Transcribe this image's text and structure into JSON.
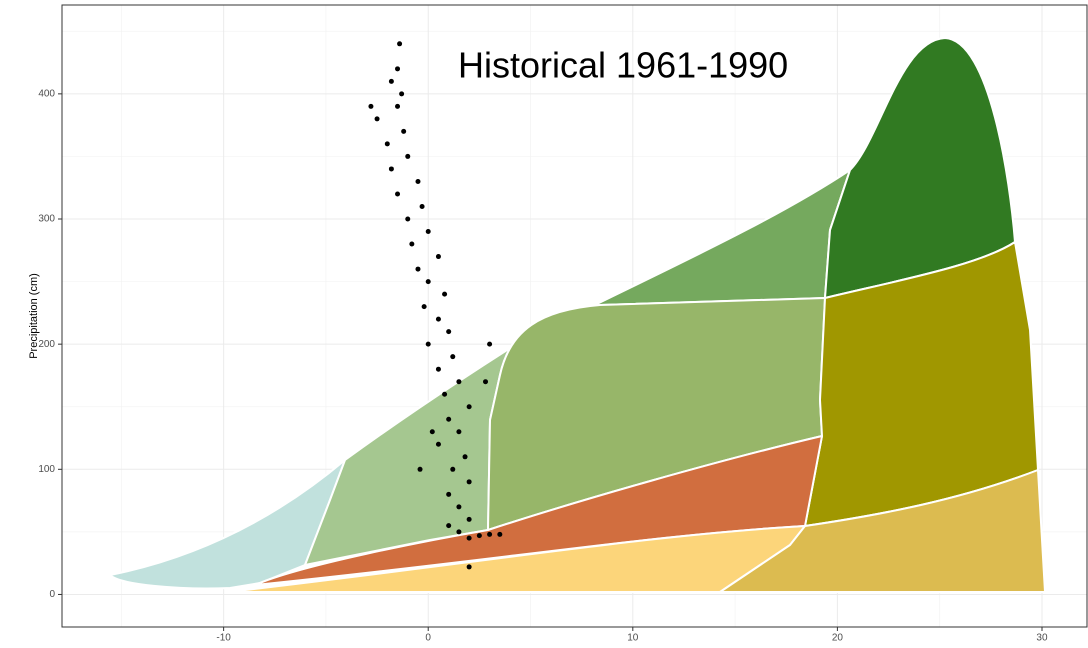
{
  "chart_data": {
    "type": "scatter",
    "title": "Historical 1961-1990",
    "y_label": "Precipitation (cm)",
    "color": "#000000",
    "x": [
      2,
      2.5,
      3,
      3.5,
      1.5,
      1,
      2,
      1.5,
      1,
      2,
      1.2,
      1.8,
      0.5,
      1.5,
      1,
      2,
      0.8,
      1.5,
      0.5,
      1.2,
      0,
      1,
      0.5,
      -0.2,
      0.8,
      0,
      -0.5,
      0.5,
      -0.8,
      0,
      -1,
      -0.3,
      -1.5,
      -0.5,
      -1.8,
      -1,
      -2,
      -1.2,
      -2.5,
      -1.5,
      -1.3,
      -1.8,
      -1.5,
      -1.4,
      2,
      -2.8,
      3,
      2.8,
      -0.4,
      0.2
    ],
    "values": [
      45,
      47,
      48,
      48,
      50,
      55,
      60,
      70,
      80,
      90,
      100,
      110,
      120,
      130,
      140,
      150,
      160,
      170,
      180,
      190,
      200,
      210,
      220,
      230,
      240,
      250,
      260,
      270,
      280,
      290,
      300,
      310,
      320,
      330,
      340,
      350,
      360,
      370,
      380,
      390,
      400,
      410,
      420,
      440,
      22,
      390,
      200,
      170,
      100,
      130
    ],
    "xlim": [
      -17.9,
      32.2
    ],
    "ylim": [
      -26,
      471
    ],
    "xticks": [
      -10,
      0,
      10,
      20,
      30
    ],
    "yticks": [
      0,
      100,
      200,
      300,
      400
    ],
    "grid": true
  }
}
